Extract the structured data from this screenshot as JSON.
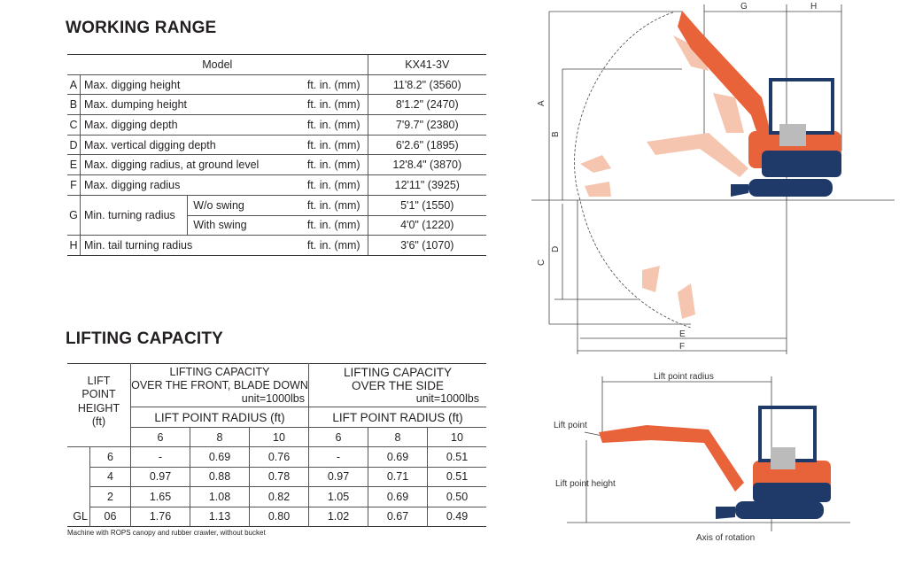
{
  "working_range": {
    "title": "WORKING RANGE",
    "model_label": "Model",
    "model_name": "KX41-3V",
    "rows": [
      {
        "key": "A",
        "label": "Max. digging height",
        "unit": "ft. in. (mm)",
        "value": "11'8.2\" (3560)"
      },
      {
        "key": "B",
        "label": "Max. dumping height",
        "unit": "ft. in. (mm)",
        "value": "8'1.2\" (2470)"
      },
      {
        "key": "C",
        "label": "Max. digging depth",
        "unit": "ft. in. (mm)",
        "value": "7'9.7\" (2380)"
      },
      {
        "key": "D",
        "label": "Max. vertical digging depth",
        "unit": "ft. in. (mm)",
        "value": "6'2.6\" (1895)"
      },
      {
        "key": "E",
        "label": "Max. digging radius, at ground level",
        "unit": "ft. in. (mm)",
        "value": "12'8.4\" (3870)"
      },
      {
        "key": "F",
        "label": "Max. digging radius",
        "unit": "ft. in. (mm)",
        "value": "12'11\" (3925)"
      }
    ],
    "turning": {
      "key": "G",
      "label": "Min. turning radius",
      "sub": [
        {
          "label": "W/o swing",
          "unit": "ft. in. (mm)",
          "value": "5'1\" (1550)"
        },
        {
          "label": "With swing",
          "unit": "ft. in. (mm)",
          "value": "4'0\" (1220)"
        }
      ]
    },
    "tail": {
      "key": "H",
      "label": "Min. tail turning radius",
      "unit": "ft. in. (mm)",
      "value": "3'6\" (1070)"
    }
  },
  "lifting_capacity": {
    "title": "LIFTING CAPACITY",
    "lift_point_height_label": [
      "LIFT",
      "POINT",
      "HEIGHT",
      "(ft)"
    ],
    "front_header": [
      "LIFTING CAPACITY",
      "OVER THE FRONT, BLADE DOWN",
      "unit=1000lbs"
    ],
    "side_header": [
      "LIFTING CAPACITY",
      "OVER THE SIDE",
      "unit=1000lbs"
    ],
    "radius_label": "LIFT POINT RADIUS (ft)",
    "radii": [
      "6",
      "8",
      "10"
    ],
    "rows": [
      {
        "gl": "",
        "height": "6",
        "front": [
          "-",
          "0.69",
          "0.76"
        ],
        "side": [
          "-",
          "0.69",
          "0.51"
        ]
      },
      {
        "gl": "",
        "height": "4",
        "front": [
          "0.97",
          "0.88",
          "0.78"
        ],
        "side": [
          "0.97",
          "0.71",
          "0.51"
        ]
      },
      {
        "gl": "",
        "height": "2",
        "front": [
          "1.65",
          "1.08",
          "0.82"
        ],
        "side": [
          "1.05",
          "0.69",
          "0.50"
        ]
      },
      {
        "gl": "GL",
        "height": "06",
        "front": [
          "1.76",
          "1.13",
          "0.80"
        ],
        "side": [
          "1.02",
          "0.67",
          "0.49"
        ]
      }
    ],
    "note": "Machine with ROPS canopy and rubber crawler, without bucket"
  },
  "diagram_range": {
    "labels": {
      "a": "A",
      "b": "B",
      "c": "C",
      "d": "D",
      "e": "E",
      "f": "F",
      "g": "G",
      "h": "H"
    }
  },
  "diagram_lift": {
    "radius_label": "Lift point radius",
    "point_label": "Lift point",
    "height_label": "Lift point height",
    "axis_label": "Axis of rotation"
  },
  "colors": {
    "boom": "#e8623a",
    "boom_ghost": "#f5c5b0",
    "cab": "#1f3a68",
    "tracks": "#1f3a68",
    "line": "#333333"
  }
}
